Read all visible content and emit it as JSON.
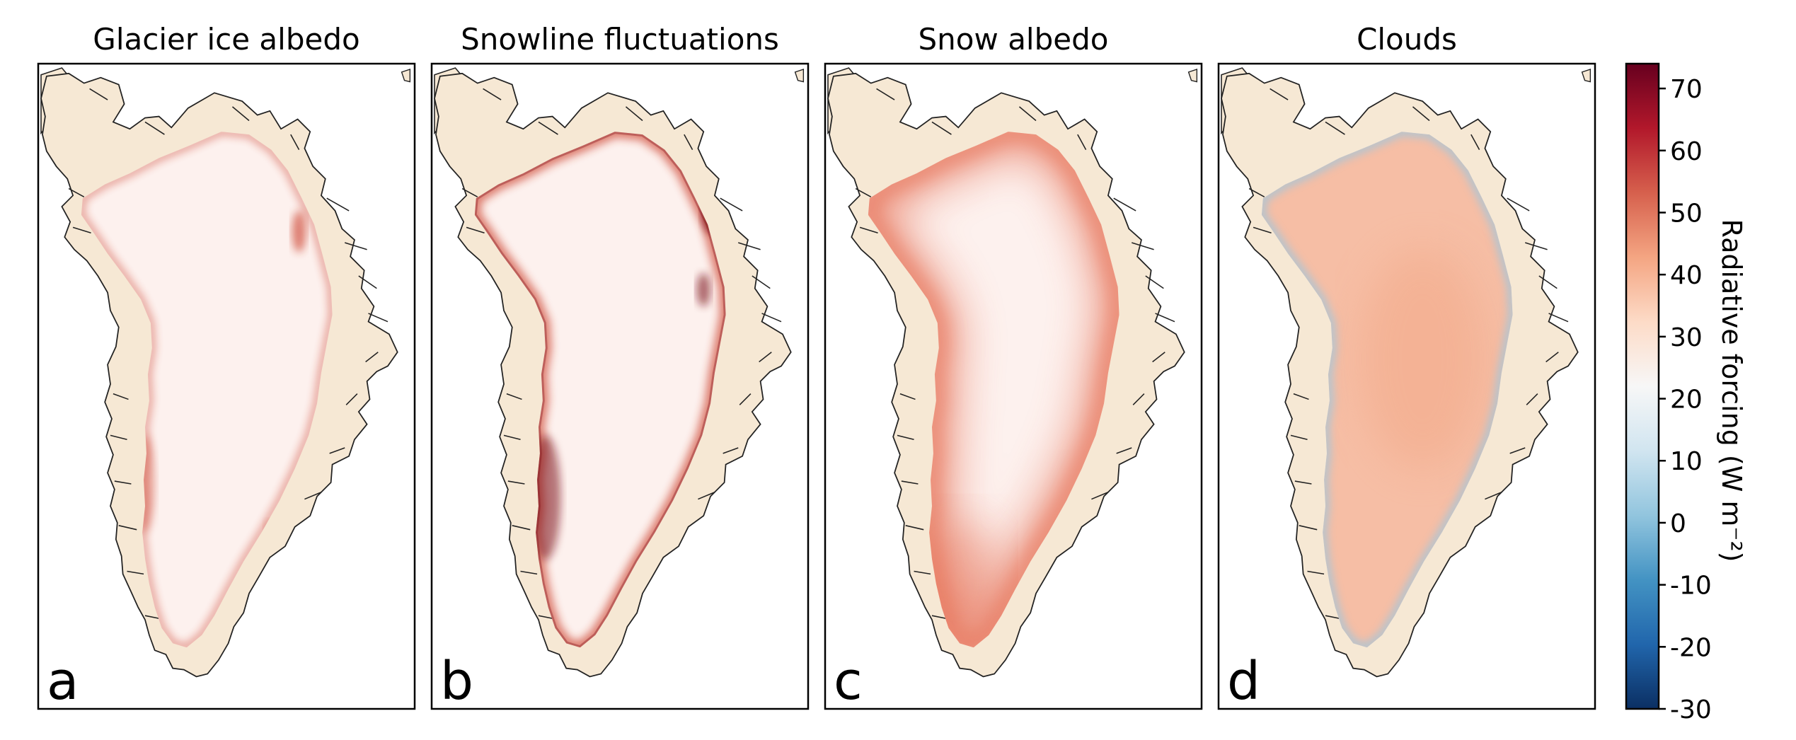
{
  "chart_data": {
    "type": "heatmap",
    "panels": [
      {
        "letter": "a",
        "title": "Glacier ice albedo",
        "mode": "ice"
      },
      {
        "letter": "b",
        "title": "Snowline fluctuations",
        "mode": "snowline"
      },
      {
        "letter": "c",
        "title": "Snow albedo",
        "mode": "snow"
      },
      {
        "letter": "d",
        "title": "Clouds",
        "mode": "clouds"
      }
    ],
    "colorbar": {
      "label": "Radiative forcing  (W m⁻²)",
      "range": [
        -30,
        74
      ],
      "ticks": [
        70,
        60,
        50,
        40,
        30,
        20,
        10,
        0,
        -10,
        -20,
        -30
      ],
      "tick_labels": [
        "70",
        "60",
        "50",
        "40",
        "30",
        "20",
        "10",
        "0",
        "-10",
        "-20",
        "-30"
      ],
      "colormap": "RdBu_r",
      "stops": [
        "#0b2f63",
        "#2166ac",
        "#4393c3",
        "#92c5de",
        "#d1e5f0",
        "#f7f7f7",
        "#fddbc7",
        "#f4a582",
        "#d6604d",
        "#b2182b",
        "#67001f"
      ]
    },
    "colors": {
      "land": "#f6e8d4",
      "coast": "#222222",
      "ice_base": "#fdf1ee",
      "margin_red": "#c8321f",
      "dark_red": "#7a0c12",
      "snow_edge": "#e4664a",
      "cloud_fill": "#f6bba0",
      "cloud_edge_blue": "#9cc7df"
    }
  }
}
